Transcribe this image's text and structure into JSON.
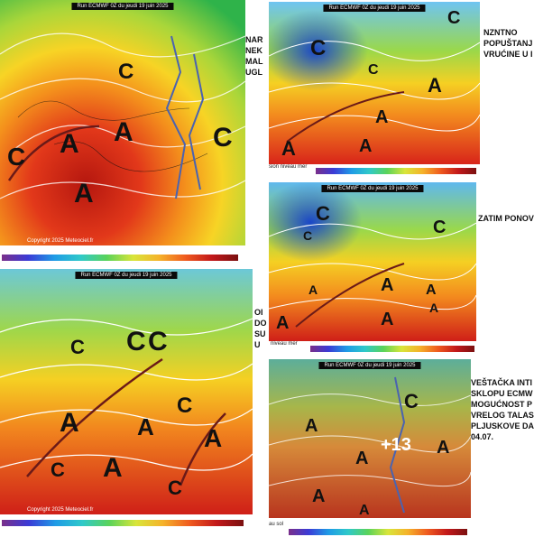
{
  "panels": [
    {
      "title": "Run ECMWF 0Z du jeudi 19 juin 2025",
      "copyright": "Copyright 2025 Meteociel.fr",
      "side_text": "NAR\nNEK\nMAL\nUGL",
      "symbols": [
        "C",
        "C",
        "A",
        "A",
        "A",
        "C"
      ]
    },
    {
      "title": "Run ECMWF 0Z du jeudi 19 juin 2025",
      "legend_label": "sion niveau mer",
      "side_text": "NZNTNO\nPOPUŠTANJ\nVRUĆINE U I",
      "symbols": [
        "C",
        "C",
        "C",
        "A",
        "A",
        "A",
        "A"
      ]
    },
    {
      "title": "Run ECMWF 0Z du jeudi 19 juin 2025",
      "legend_label": "niveau mer",
      "side_text": "ZATIM PONOV",
      "symbols": [
        "C",
        "C",
        "C",
        "A",
        "A",
        "A",
        "A",
        "A",
        "A"
      ]
    },
    {
      "title": "Run ECMWF 0Z du jeudi 19 juin 2025",
      "copyright": "Copyright 2025 Meteociel.fr",
      "side_text": "OI\nDO\nSU\nU",
      "symbols": [
        "C",
        "C",
        "C",
        "C",
        "A",
        "A",
        "A",
        "A",
        "C",
        "C"
      ]
    },
    {
      "title": "Run ECMWF 0Z du jeudi 19 juin 2025",
      "legend_label": "au sol",
      "side_text": "VEŠTAČKA INTI\nSKLOPU ECMW\nMOGUĆNOST P\nVRELOG TALAS\nPLJUSKOVE DA\n04.07.",
      "overlay": "+13",
      "symbols": [
        "C",
        "A",
        "A",
        "A",
        "A",
        "A"
      ]
    }
  ],
  "colors": {
    "hot": "#d8261a",
    "warm": "#f28a1c",
    "mid": "#f5d020",
    "cool": "#8fd13a",
    "cold": "#2a6fdc"
  }
}
